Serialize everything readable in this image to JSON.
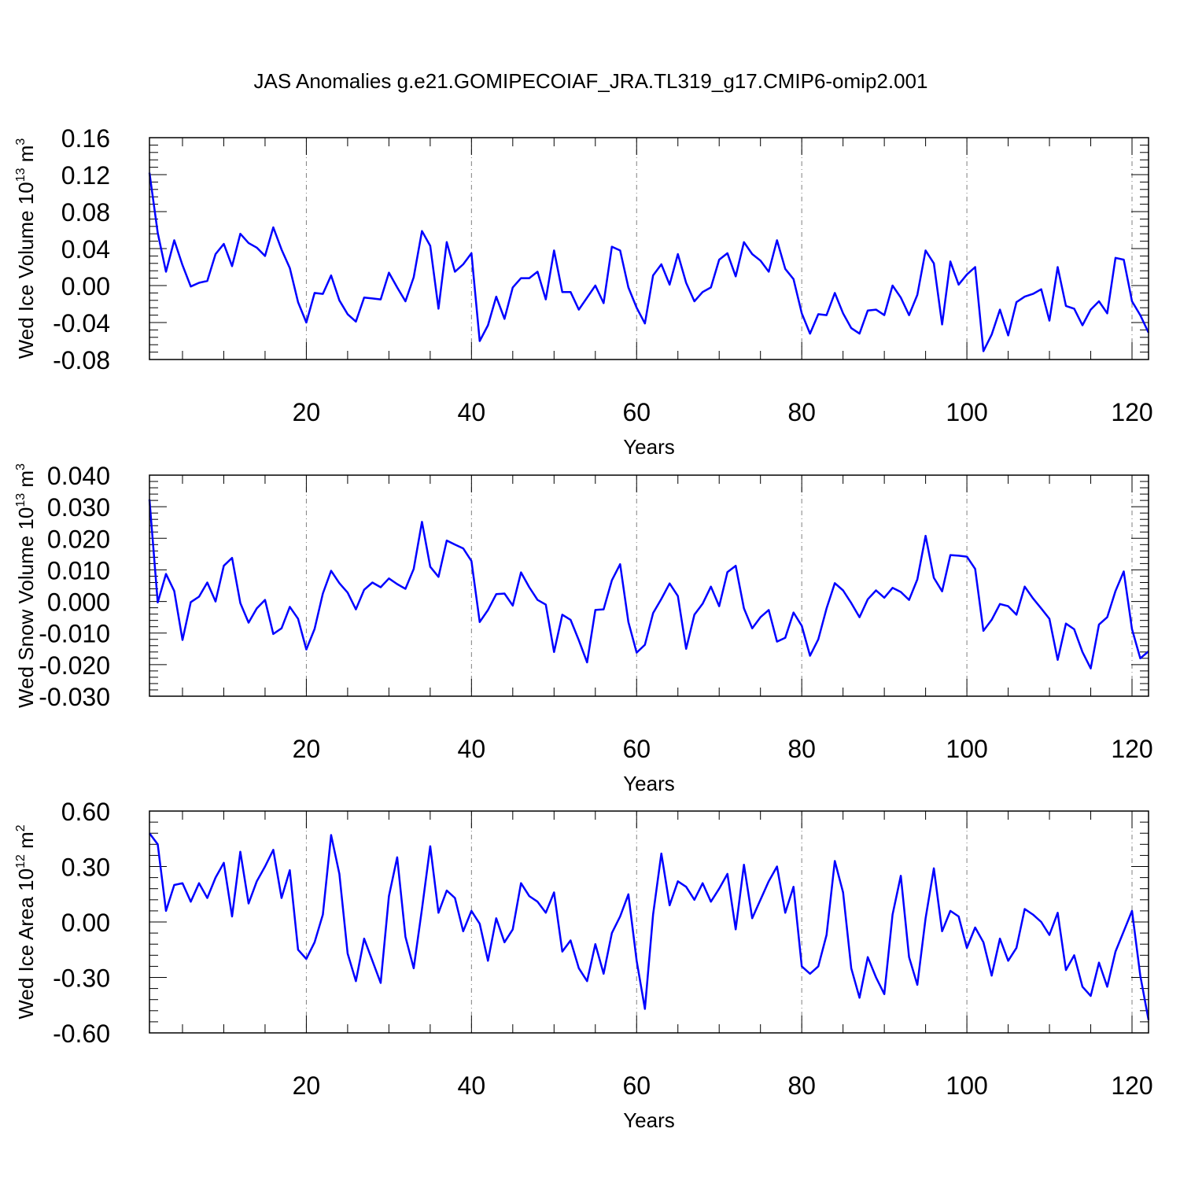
{
  "figure": {
    "title": "JAS Anomalies g.e21.GOMIPECOIAF_JRA.TL319_g17.CMIP6-omip2.001"
  },
  "colors": {
    "series": "#0000ff",
    "axis": "#000000",
    "gridline": "#808080",
    "background": "#ffffff"
  },
  "chart_data": [
    {
      "type": "line",
      "ylabel": {
        "main": "Wed Ice Volume 10",
        "sup1": "13",
        "mid": " m",
        "sup2": "3"
      },
      "xlabel": "Years",
      "xlim": [
        1,
        122
      ],
      "ylim": [
        -0.08,
        0.16
      ],
      "xticks": [
        20,
        40,
        60,
        80,
        100,
        120
      ],
      "xtick_labels": [
        "20",
        "40",
        "60",
        "80",
        "100",
        "120"
      ],
      "yticks": [
        -0.08,
        -0.04,
        0.0,
        0.04,
        0.08,
        0.12,
        0.16
      ],
      "ytick_labels": [
        "-0.08",
        "-0.04",
        "0.00",
        "0.04",
        "0.08",
        "0.12",
        "0.16"
      ],
      "grid": "vertical dashed at x ticks",
      "series": [
        {
          "values": [
            0.122,
            0.057,
            0.015,
            0.049,
            0.022,
            -0.001,
            0.003,
            0.005,
            0.034,
            0.045,
            0.021,
            0.056,
            0.046,
            0.041,
            0.032,
            0.063,
            0.039,
            0.019,
            -0.018,
            -0.04,
            -0.008,
            -0.009,
            0.011,
            -0.016,
            -0.031,
            -0.039,
            -0.013,
            -0.014,
            -0.015,
            0.014,
            -0.002,
            -0.017,
            0.009,
            0.059,
            0.043,
            -0.025,
            0.047,
            0.015,
            0.023,
            0.035,
            -0.06,
            -0.043,
            -0.012,
            -0.036,
            -0.002,
            0.008,
            0.008,
            0.015,
            -0.015,
            0.038,
            -0.007,
            -0.007,
            -0.026,
            -0.013,
            0.0,
            -0.019,
            0.042,
            0.038,
            -0.002,
            -0.024,
            -0.041,
            0.011,
            0.023,
            0.001,
            0.034,
            0.003,
            -0.017,
            -0.007,
            -0.002,
            0.028,
            0.035,
            0.01,
            0.047,
            0.034,
            0.027,
            0.015,
            0.049,
            0.018,
            0.007,
            -0.03,
            -0.052,
            -0.031,
            -0.032,
            -0.008,
            -0.03,
            -0.046,
            -0.052,
            -0.027,
            -0.026,
            -0.032,
            0.0,
            -0.013,
            -0.032,
            -0.01,
            0.038,
            0.024,
            -0.042,
            0.026,
            0.001,
            0.012,
            0.02,
            -0.071,
            -0.053,
            -0.026,
            -0.054,
            -0.018,
            -0.012,
            -0.009,
            -0.004,
            -0.038,
            0.02,
            -0.022,
            -0.025,
            -0.043,
            -0.026,
            -0.017,
            -0.03,
            0.03,
            0.028,
            -0.017,
            -0.032,
            -0.051
          ]
        }
      ]
    },
    {
      "type": "line",
      "ylabel": {
        "main": "Wed Snow Volume 10",
        "sup1": "13",
        "mid": " m",
        "sup2": "3"
      },
      "xlabel": "Years",
      "xlim": [
        1,
        122
      ],
      "ylim": [
        -0.03,
        0.04
      ],
      "xticks": [
        20,
        40,
        60,
        80,
        100,
        120
      ],
      "xtick_labels": [
        "20",
        "40",
        "60",
        "80",
        "100",
        "120"
      ],
      "yticks": [
        -0.03,
        -0.02,
        -0.01,
        0.0,
        0.01,
        0.02,
        0.03,
        0.04
      ],
      "ytick_labels": [
        "-0.030",
        "-0.020",
        "-0.010",
        "0.000",
        "0.010",
        "0.020",
        "0.030",
        "0.040"
      ],
      "grid": "vertical dashed at x ticks",
      "series": [
        {
          "values": [
            0.0323,
            -0.0003,
            0.0087,
            0.0033,
            -0.0122,
            -0.0002,
            0.0015,
            0.006,
            0.0,
            0.0113,
            0.0138,
            -0.0005,
            -0.0067,
            -0.0022,
            0.0005,
            -0.0103,
            -0.0085,
            -0.0017,
            -0.0055,
            -0.0152,
            -0.0087,
            0.0025,
            0.0097,
            0.0058,
            0.0028,
            -0.0025,
            0.0037,
            0.006,
            0.0045,
            0.0073,
            0.0055,
            0.004,
            0.0103,
            0.0252,
            0.011,
            0.0078,
            0.0193,
            0.018,
            0.0168,
            0.0128,
            -0.0065,
            -0.0027,
            0.0023,
            0.0025,
            -0.0013,
            0.0092,
            0.0045,
            0.0005,
            -0.001,
            -0.016,
            -0.0042,
            -0.0058,
            -0.0123,
            -0.0193,
            -0.0027,
            -0.0025,
            0.0067,
            0.0118,
            -0.0065,
            -0.0162,
            -0.0137,
            -0.0037,
            0.0008,
            0.0057,
            0.0017,
            -0.015,
            -0.0042,
            -0.0007,
            0.0047,
            -0.0015,
            0.0093,
            0.0113,
            -0.0022,
            -0.0085,
            -0.005,
            -0.0027,
            -0.0127,
            -0.0115,
            -0.0035,
            -0.0077,
            -0.0172,
            -0.012,
            -0.0022,
            0.0058,
            0.0035,
            -0.0005,
            -0.005,
            0.0007,
            0.0035,
            0.0012,
            0.0043,
            0.003,
            0.0005,
            0.007,
            0.0208,
            0.0075,
            0.0032,
            0.0147,
            0.0145,
            0.0142,
            0.0103,
            -0.0093,
            -0.0058,
            -0.0008,
            -0.0015,
            -0.0042,
            0.0047,
            0.001,
            -0.0022,
            -0.0055,
            -0.0185,
            -0.007,
            -0.0088,
            -0.016,
            -0.0212,
            -0.0073,
            -0.005,
            0.0033,
            0.0095,
            -0.0088,
            -0.018,
            -0.0158
          ]
        }
      ]
    },
    {
      "type": "line",
      "ylabel": {
        "main": "Wed Ice Area 10",
        "sup1": "12",
        "mid": " m",
        "sup2": "2"
      },
      "xlabel": "Years",
      "xlim": [
        1,
        122
      ],
      "ylim": [
        -0.6,
        0.6
      ],
      "xticks": [
        20,
        40,
        60,
        80,
        100,
        120
      ],
      "xtick_labels": [
        "20",
        "40",
        "60",
        "80",
        "100",
        "120"
      ],
      "yticks": [
        -0.6,
        -0.3,
        0.0,
        0.3,
        0.6
      ],
      "ytick_labels": [
        "-0.60",
        "-0.30",
        "0.00",
        "0.30",
        "0.60"
      ],
      "grid": "vertical dashed at x ticks",
      "series": [
        {
          "values": [
            0.48,
            0.42,
            0.06,
            0.2,
            0.21,
            0.11,
            0.21,
            0.13,
            0.24,
            0.32,
            0.03,
            0.38,
            0.1,
            0.22,
            0.3,
            0.39,
            0.13,
            0.28,
            -0.15,
            -0.2,
            -0.11,
            0.04,
            0.47,
            0.26,
            -0.17,
            -0.32,
            -0.09,
            -0.21,
            -0.33,
            0.14,
            0.35,
            -0.08,
            -0.25,
            0.07,
            0.41,
            0.05,
            0.17,
            0.13,
            -0.05,
            0.06,
            -0.01,
            -0.21,
            0.02,
            -0.11,
            -0.04,
            0.21,
            0.14,
            0.11,
            0.05,
            0.16,
            -0.16,
            -0.1,
            -0.25,
            -0.32,
            -0.12,
            -0.28,
            -0.06,
            0.03,
            0.15,
            -0.21,
            -0.47,
            0.04,
            0.37,
            0.09,
            0.22,
            0.19,
            0.12,
            0.21,
            0.11,
            0.18,
            0.26,
            -0.04,
            0.31,
            0.02,
            0.12,
            0.22,
            0.3,
            0.05,
            0.19,
            -0.24,
            -0.28,
            -0.24,
            -0.07,
            0.33,
            0.16,
            -0.25,
            -0.41,
            -0.19,
            -0.3,
            -0.39,
            0.04,
            0.25,
            -0.19,
            -0.34,
            0.02,
            0.29,
            -0.05,
            0.06,
            0.03,
            -0.14,
            -0.03,
            -0.11,
            -0.29,
            -0.09,
            -0.21,
            -0.14,
            0.07,
            0.04,
            0.0,
            -0.07,
            0.05,
            -0.26,
            -0.18,
            -0.35,
            -0.4,
            -0.22,
            -0.35,
            -0.16,
            -0.05,
            0.06,
            -0.29,
            -0.53
          ]
        }
      ]
    }
  ]
}
